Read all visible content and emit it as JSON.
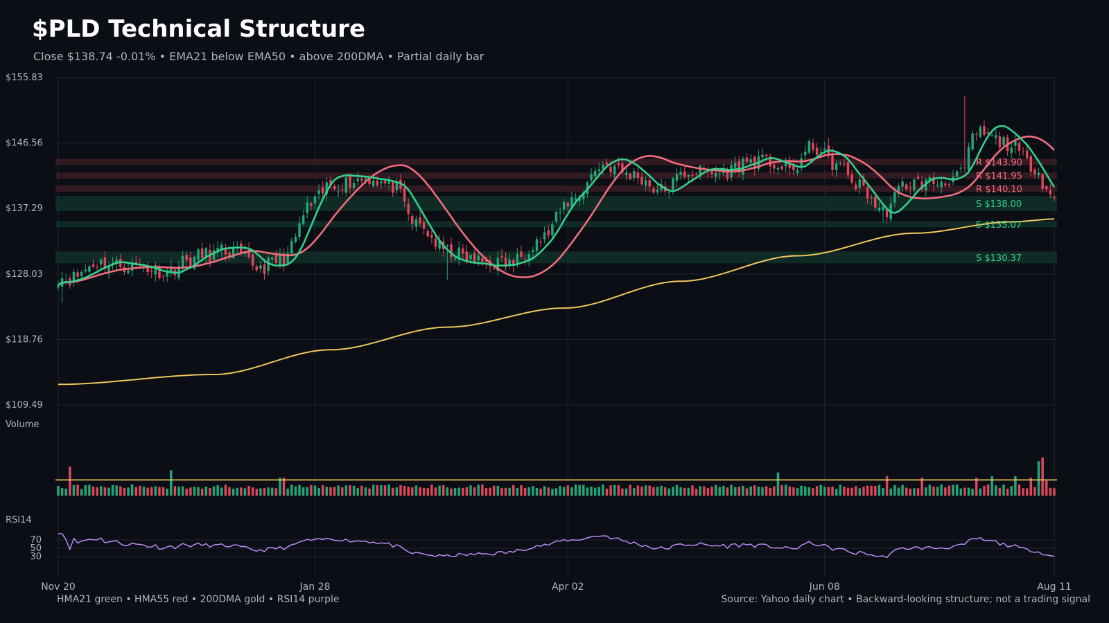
{
  "header": {
    "title": "$PLD Technical Structure",
    "subtitle": "Close $138.74  -0.01%  •  EMA21 below EMA50 • above 200DMA  •  Partial daily bar"
  },
  "footer": {
    "legend_text": "HMA21 green • HMA55 red • 200DMA gold  •  RSI14 purple",
    "source_text": "Source: Yahoo daily chart • Backward-looking structure; not a trading signal"
  },
  "colors": {
    "background": "#0b0e15",
    "grid": "#1f2533",
    "axis_text": "#aeb4bf",
    "up": "#22a77a",
    "down": "#e0475a",
    "hma21": "#35d08c",
    "hma55": "#f26d7d",
    "dma200": "#f0c75e",
    "rsi": "#b98cf2",
    "resistance_band": "#3a1c24",
    "support_band": "#123028"
  },
  "chart_data": {
    "type": "candlestick",
    "x_ticks": [
      "Nov 20",
      "Jan 28",
      "Apr 02",
      "Jun 08",
      "Aug 11"
    ],
    "y_ticks": [
      "$155.83",
      "$146.56",
      "$137.29",
      "$128.03",
      "$118.76",
      "$109.49"
    ],
    "ylim": [
      109.49,
      155.83
    ],
    "grid": true,
    "price_anchors": [
      [
        0,
        127.6
      ],
      [
        3,
        127.4
      ],
      [
        10,
        129.6
      ],
      [
        20,
        129.1
      ],
      [
        28,
        128.4
      ],
      [
        33,
        129.9
      ],
      [
        38,
        130.8
      ],
      [
        44,
        131.3
      ],
      [
        52,
        129.0
      ],
      [
        58,
        130.2
      ],
      [
        65,
        137.8
      ],
      [
        70,
        140.6
      ],
      [
        80,
        141.6
      ],
      [
        86,
        140.4
      ],
      [
        92,
        135.0
      ],
      [
        100,
        131.2
      ],
      [
        108,
        129.8
      ],
      [
        116,
        129.5
      ],
      [
        124,
        133.0
      ],
      [
        132,
        138.5
      ],
      [
        140,
        143.5
      ],
      [
        148,
        142.0
      ],
      [
        155,
        139.8
      ],
      [
        162,
        142.5
      ],
      [
        170,
        142.3
      ],
      [
        178,
        144.0
      ],
      [
        183,
        143.8
      ],
      [
        188,
        142.5
      ],
      [
        194,
        146.0
      ],
      [
        200,
        143.5
      ],
      [
        206,
        140.5
      ],
      [
        212,
        136.8
      ],
      [
        218,
        140.8
      ],
      [
        226,
        141.0
      ],
      [
        232,
        142.0
      ],
      [
        236,
        148.0
      ],
      [
        244,
        146.5
      ],
      [
        250,
        143.6
      ],
      [
        256,
        138.74
      ]
    ],
    "spikes": [
      {
        "index": 1,
        "low": 123.9
      },
      {
        "index": 233,
        "high": 153.2
      },
      {
        "index": 212,
        "low": 135.3
      },
      {
        "index": 100,
        "low": 127.2
      }
    ],
    "dma200": {
      "name": "200DMA",
      "anchors": [
        [
          0,
          112.4
        ],
        [
          40,
          113.8
        ],
        [
          70,
          117.3
        ],
        [
          100,
          120.5
        ],
        [
          130,
          123.2
        ],
        [
          160,
          127.0
        ],
        [
          190,
          130.6
        ],
        [
          220,
          133.8
        ],
        [
          245,
          135.4
        ],
        [
          256,
          135.8
        ]
      ]
    },
    "levels": [
      {
        "label": "R $143.90",
        "value": 143.9,
        "kind": "resistance"
      },
      {
        "label": "R $141.95",
        "value": 141.95,
        "kind": "resistance"
      },
      {
        "label": "R $140.10",
        "value": 140.1,
        "kind": "resistance"
      },
      {
        "label": "S $138.00",
        "value": 138.0,
        "kind": "support"
      },
      {
        "label": "S $135.07",
        "value": 135.07,
        "kind": "support"
      },
      {
        "label": "S $130.37",
        "value": 130.37,
        "kind": "support"
      }
    ],
    "volume": {
      "label": "Volume",
      "average_line": true,
      "spikes": [
        [
          3,
          1.95
        ],
        [
          29,
          1.7
        ],
        [
          57,
          1.2
        ],
        [
          58,
          1.2
        ],
        [
          185,
          1.55
        ],
        [
          213,
          1.3
        ],
        [
          222,
          1.2
        ],
        [
          236,
          1.2
        ],
        [
          240,
          1.3
        ],
        [
          246,
          1.3
        ],
        [
          250,
          1.2
        ],
        [
          252,
          2.3
        ],
        [
          253,
          2.55
        ],
        [
          254,
          1.0
        ]
      ]
    },
    "rsi": {
      "label": "RSI14",
      "period": 14,
      "ticks": [
        "70",
        "50",
        "30"
      ],
      "ylim": [
        0,
        100
      ]
    }
  }
}
